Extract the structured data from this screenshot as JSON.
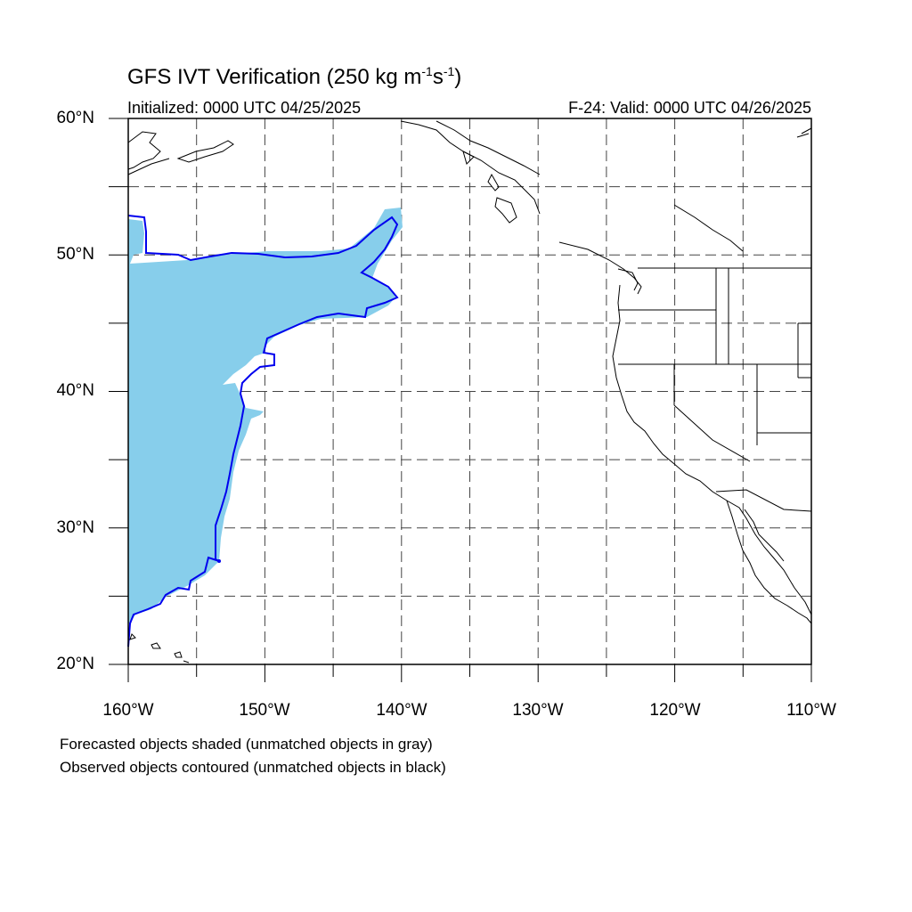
{
  "header": {
    "title_main": "GFS IVT Verification (250 kg m",
    "title_exp1": "-1",
    "title_mid": "s",
    "title_exp2": "-1",
    "title_end": ")",
    "init_text": "Initialized: 0000 UTC 04/25/2025",
    "valid_text": "F-24: Valid: 0000 UTC 04/26/2025"
  },
  "axes": {
    "lat_labels": [
      "60°N",
      "50°N",
      "40°N",
      "30°N",
      "20°N"
    ],
    "lon_labels": [
      "160°W",
      "150°W",
      "140°W",
      "130°W",
      "120°W",
      "110°W"
    ],
    "lon_range": [
      -160,
      -110
    ],
    "lat_range": [
      20,
      60
    ],
    "grid": "dashed, every 5 degrees"
  },
  "legend": {
    "line1": "Forecasted objects shaded (unmatched objects in gray)",
    "line2": "Observed objects contoured (unmatched objects in black)"
  },
  "colors": {
    "forecast_fill": "#87ceeb",
    "observed_contour": "#0000ee",
    "coastline": "#000000",
    "grid": "#444444"
  }
}
